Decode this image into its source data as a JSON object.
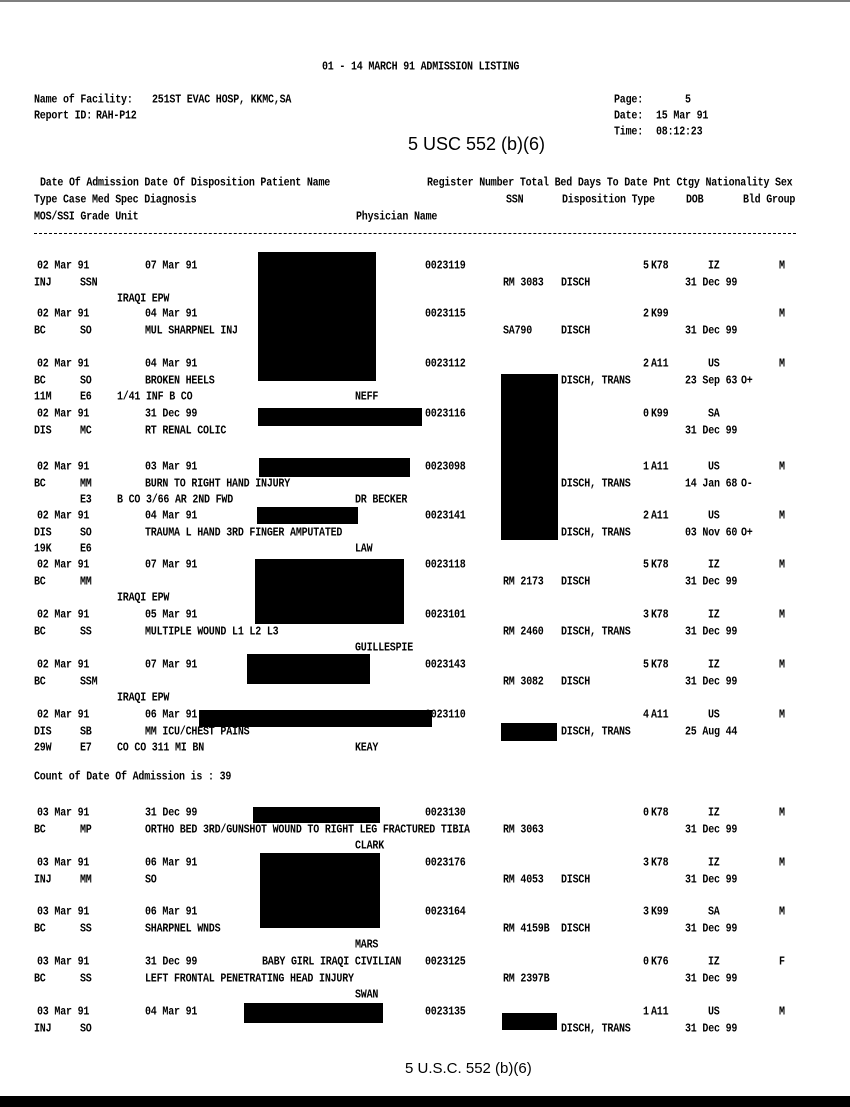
{
  "header": {
    "title": "01 - 14 MARCH 91 ADMISSION LISTING",
    "facility_label": "Name of Facility:",
    "facility": "251ST EVAC HOSP, KKMC,SA",
    "report_id_label": "Report ID:",
    "report_id": "RAH-P12",
    "page_label": "Page:",
    "page": "5",
    "date_label": "Date:",
    "date": "15 Mar 91",
    "time_label": "Time:",
    "time": "08:12:23",
    "exemption_stamp": "5 USC 552 (b)(6)"
  },
  "columns": {
    "line1": "Date Of Admission Date Of Disposition Patient Name",
    "line1_right": "Register Number Total Bed Days To Date Pnt Ctgy Nationality Sex",
    "line2": "Type Case Med Spec Diagnosis",
    "ssn": "SSN",
    "disposition_type": "Disposition Type",
    "dob": "DOB",
    "bld_group": "Bld Group",
    "line3": "MOS/SSI Grade Unit",
    "physician": "Physician Name"
  },
  "records": [
    {
      "admit_date": "02 Mar 91",
      "disp_date": "07 Mar 91",
      "register": "0023119",
      "bed_days": "5",
      "ctgy": "K78",
      "nationality": "IZ",
      "sex": "M",
      "type": "INJ",
      "case_med_spec": "SSN",
      "ssn": "RM 3083",
      "disposition_type": "DISCH",
      "dob": "31 Dec 99",
      "unit": "IRAQI EPW"
    },
    {
      "admit_date": "02 Mar 91",
      "disp_date": "04 Mar 91",
      "register": "0023115",
      "bed_days": "2",
      "ctgy": "K99",
      "sex": "M",
      "type": "BC",
      "case_med_spec": "SO",
      "diagnosis": "MUL SHARPNEL INJ",
      "ssn": "SA790",
      "disposition_type": "DISCH",
      "dob": "31 Dec 99"
    },
    {
      "admit_date": "02 Mar 91",
      "disp_date": "04 Mar 91",
      "register": "0023112",
      "bed_days": "2",
      "ctgy": "A11",
      "nationality": "US",
      "sex": "M",
      "type": "BC",
      "case_med_spec": "SO",
      "diagnosis": "BROKEN HEELS",
      "disposition_type": "DISCH, TRANS",
      "dob": "23 Sep 63",
      "bld_group": "O+",
      "mos": "11M",
      "grade": "E6",
      "unit": "1/41 INF B CO",
      "physician": "NEFF"
    },
    {
      "admit_date": "02 Mar 91",
      "disp_date": "31 Dec 99",
      "register": "0023116",
      "bed_days": "0",
      "ctgy": "K99",
      "nationality": "SA",
      "type": "DIS",
      "case_med_spec": "MC",
      "diagnosis": "RT RENAL COLIC",
      "dob": "31 Dec 99"
    },
    {
      "admit_date": "02 Mar 91",
      "disp_date": "03 Mar 91",
      "register": "0023098",
      "bed_days": "1",
      "ctgy": "A11",
      "nationality": "US",
      "sex": "M",
      "type": "BC",
      "case_med_spec": "MM",
      "diagnosis": "BURN TO RIGHT HAND INJURY",
      "disposition_type": "DISCH, TRANS",
      "dob": "14 Jan 68",
      "bld_group": "O-",
      "grade": "E3",
      "unit": "B CO 3/66 AR 2ND FWD",
      "physician": "DR BECKER"
    },
    {
      "admit_date": "02 Mar 91",
      "disp_date": "04 Mar 91",
      "register": "0023141",
      "bed_days": "2",
      "ctgy": "A11",
      "nationality": "US",
      "sex": "M",
      "type": "DIS",
      "case_med_spec": "SO",
      "diagnosis": "TRAUMA L HAND 3RD FINGER AMPUTATED",
      "disposition_type": "DISCH, TRANS",
      "dob": "03 Nov 60",
      "bld_group": "O+",
      "mos": "19K",
      "grade": "E6",
      "physician": "LAW"
    },
    {
      "admit_date": "02 Mar 91",
      "disp_date": "07 Mar 91",
      "register": "0023118",
      "bed_days": "5",
      "ctgy": "K78",
      "nationality": "IZ",
      "sex": "M",
      "type": "BC",
      "case_med_spec": "MM",
      "ssn": "RM 2173",
      "disposition_type": "DISCH",
      "dob": "31 Dec 99",
      "unit": "IRAQI EPW"
    },
    {
      "admit_date": "02 Mar 91",
      "disp_date": "05 Mar 91",
      "register": "0023101",
      "bed_days": "3",
      "ctgy": "K78",
      "nationality": "IZ",
      "sex": "M",
      "type": "BC",
      "case_med_spec": "SS",
      "diagnosis": "MULTIPLE WOUND L1 L2 L3",
      "ssn": "RM 2460",
      "disposition_type": "DISCH, TRANS",
      "dob": "31 Dec 99",
      "physician": "GUILLESPIE"
    },
    {
      "admit_date": "02 Mar 91",
      "disp_date": "07 Mar 91",
      "register": "0023143",
      "bed_days": "5",
      "ctgy": "K78",
      "nationality": "IZ",
      "sex": "M",
      "type": "BC",
      "case_med_spec": "SSM",
      "ssn": "RM 3082",
      "disposition_type": "DISCH",
      "dob": "31 Dec 99",
      "unit": "IRAQI EPW"
    },
    {
      "admit_date": "02 Mar 91",
      "disp_date": "06 Mar 91",
      "register": "0023110",
      "bed_days": "4",
      "ctgy": "A11",
      "nationality": "US",
      "sex": "M",
      "type": "DIS",
      "case_med_spec": "SB",
      "diagnosis": "MM ICU/CHEST PAINS",
      "disposition_type": "DISCH, TRANS",
      "dob": "25 Aug 44",
      "mos": "29W",
      "grade": "E7",
      "unit": "CO CO 311 MI BN",
      "physician": "KEAY"
    },
    {
      "admit_date": "03 Mar 91",
      "disp_date": "31 Dec 99",
      "register": "0023130",
      "bed_days": "0",
      "ctgy": "K78",
      "nationality": "IZ",
      "sex": "M",
      "type": "BC",
      "case_med_spec": "MP",
      "diagnosis": "ORTHO BED 3RD/GUNSHOT WOUND TO RIGHT LEG FRACTURED TIBIA",
      "ssn": "RM 3063",
      "dob": "31 Dec 99",
      "physician": "CLARK"
    },
    {
      "admit_date": "03 Mar 91",
      "disp_date": "06 Mar 91",
      "register": "0023176",
      "bed_days": "3",
      "ctgy": "K78",
      "nationality": "IZ",
      "sex": "M",
      "type": "INJ",
      "case_med_spec": "MM",
      "diagnosis": "SO",
      "ssn": "RM 4053",
      "disposition_type": "DISCH",
      "dob": "31 Dec 99"
    },
    {
      "admit_date": "03 Mar 91",
      "disp_date": "06 Mar 91",
      "register": "0023164",
      "bed_days": "3",
      "ctgy": "K99",
      "nationality": "SA",
      "sex": "M",
      "type": "BC",
      "case_med_spec": "SS",
      "diagnosis": "SHARPNEL WNDS",
      "ssn": "RM 4159B",
      "disposition_type": "DISCH",
      "dob": "31 Dec 99",
      "physician": "MARS"
    },
    {
      "admit_date": "03 Mar 91",
      "disp_date": "31 Dec 99",
      "patient_name": "BABY GIRL IRAQI CIVILIAN",
      "register": "0023125",
      "bed_days": "0",
      "ctgy": "K76",
      "nationality": "IZ",
      "sex": "F",
      "type": "BC",
      "case_med_spec": "SS",
      "diagnosis": "LEFT FRONTAL PENETRATING HEAD INJURY",
      "ssn": "RM 2397B",
      "dob": "31 Dec 99",
      "physician": "SWAN"
    },
    {
      "admit_date": "03 Mar 91",
      "disp_date": "04 Mar 91",
      "register": "0023135",
      "bed_days": "1",
      "ctgy": "A11",
      "nationality": "US",
      "sex": "M",
      "type": "INJ",
      "case_med_spec": "SO",
      "disposition_type": "DISCH, TRANS",
      "dob": "31 Dec 99"
    }
  ],
  "count_line": "Count of Date Of Admission is : 39",
  "footer": {
    "exemption_stamp": "5 U.S.C. 552 (b)(6)"
  }
}
